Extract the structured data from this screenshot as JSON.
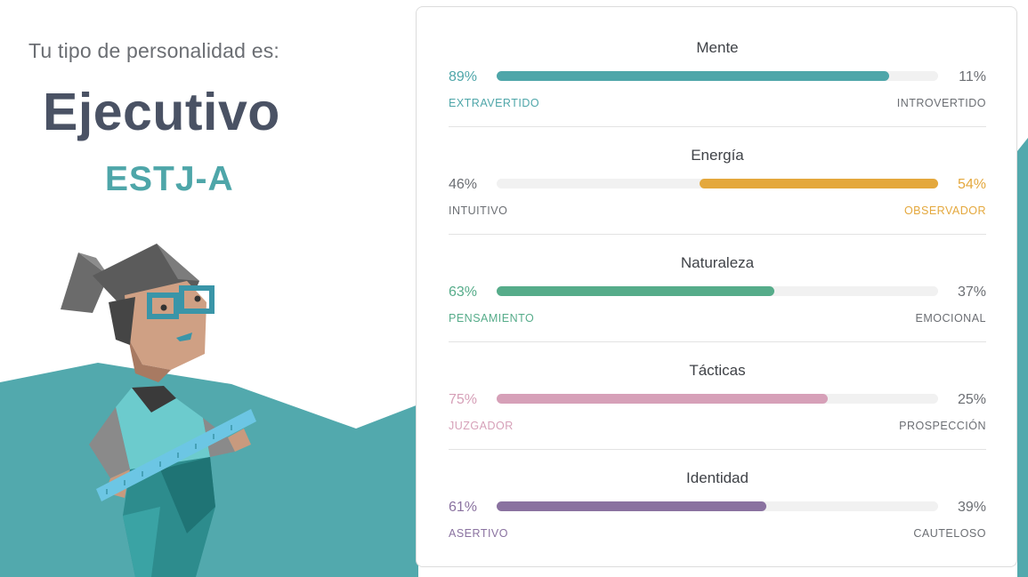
{
  "header": {
    "intro": "Tu tipo de personalidad es:",
    "type_name": "Ejecutivo",
    "type_code": "ESTJ-A"
  },
  "colors": {
    "teal_bg": "#52a9ad",
    "mind": "#4ea6a9",
    "energy": "#e4a83d",
    "nature": "#56ac8a",
    "tactics": "#d6a0b8",
    "identity": "#8a72a0"
  },
  "traits": [
    {
      "title": "Mente",
      "left_pct": "89%",
      "right_pct": "11%",
      "left_label": "EXTRAVERTIDO",
      "right_label": "INTROVERTIDO",
      "dominant": "left",
      "value": 0.89,
      "color": "#4ea6a9"
    },
    {
      "title": "Energía",
      "left_pct": "46%",
      "right_pct": "54%",
      "left_label": "INTUITIVO",
      "right_label": "OBSERVADOR",
      "dominant": "right",
      "value": 0.54,
      "color": "#e4a83d"
    },
    {
      "title": "Naturaleza",
      "left_pct": "63%",
      "right_pct": "37%",
      "left_label": "PENSAMIENTO",
      "right_label": "EMOCIONAL",
      "dominant": "left",
      "value": 0.63,
      "color": "#56ac8a"
    },
    {
      "title": "Tácticas",
      "left_pct": "75%",
      "right_pct": "25%",
      "left_label": "JUZGADOR",
      "right_label": "PROSPECCIÓN",
      "dominant": "left",
      "value": 0.75,
      "color": "#d6a0b8"
    },
    {
      "title": "Identidad",
      "left_pct": "61%",
      "right_pct": "39%",
      "left_label": "ASERTIVO",
      "right_label": "CAUTELOSO",
      "dominant": "left",
      "value": 0.61,
      "color": "#8a72a0"
    }
  ],
  "icons": {
    "character": "executive-character-illustration"
  }
}
